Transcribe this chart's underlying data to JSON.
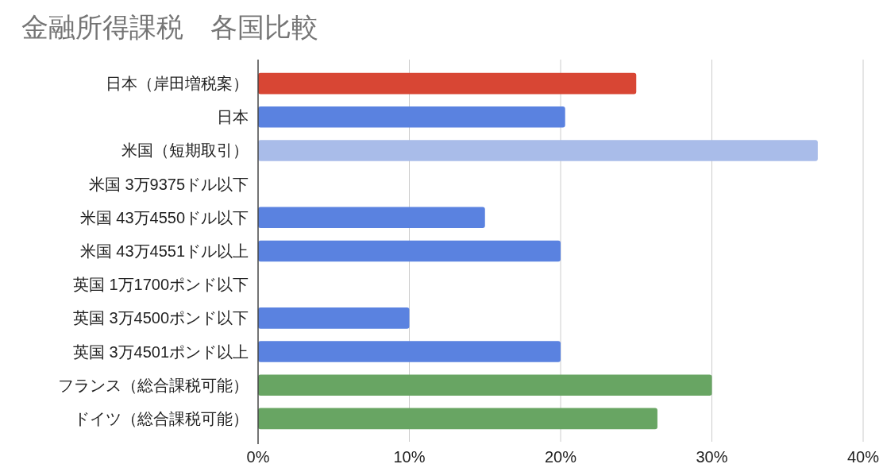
{
  "chart_data": {
    "type": "bar",
    "orientation": "horizontal",
    "title": "金融所得課税　各国比較",
    "categories": [
      "日本（岸田増税案）",
      "日本",
      "米国（短期取引）",
      "米国 3万9375ドル以下",
      "米国 43万4550ドル以下",
      "米国 43万4551ドル以上",
      "英国 1万1700ポンド以下",
      "英国 3万4500ポンド以下",
      "英国 3万4501ポンド以上",
      "フランス（総合課税可能）",
      "ドイツ（総合課税可能）"
    ],
    "values": [
      25,
      20.3,
      37,
      0,
      15,
      20,
      0,
      10,
      20,
      30,
      26.4
    ],
    "colors": [
      "#d84634",
      "#5a82e0",
      "#a9bce9",
      null,
      "#5a82e0",
      "#5a82e0",
      null,
      "#5a82e0",
      "#5a82e0",
      "#68a563",
      "#68a563"
    ],
    "xlim": [
      0,
      40
    ],
    "xticks": [
      {
        "value": 0,
        "label": "0%"
      },
      {
        "value": 10,
        "label": "10%"
      },
      {
        "value": 20,
        "label": "20%"
      },
      {
        "value": 30,
        "label": "30%"
      },
      {
        "value": 40,
        "label": "40%"
      }
    ],
    "grid": "x"
  }
}
